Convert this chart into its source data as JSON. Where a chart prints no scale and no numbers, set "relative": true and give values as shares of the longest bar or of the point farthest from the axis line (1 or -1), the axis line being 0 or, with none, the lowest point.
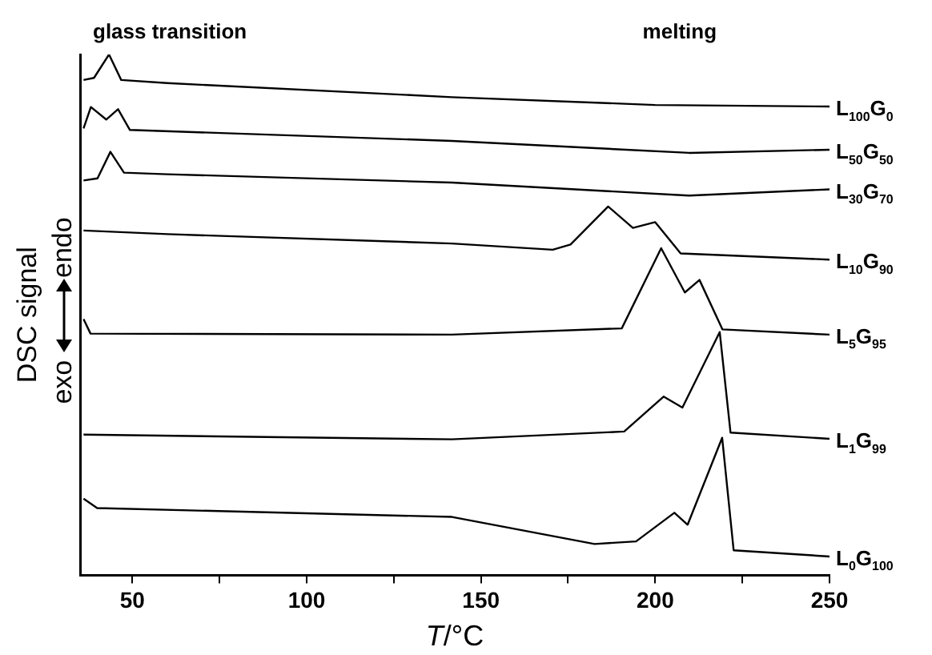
{
  "chart_data": {
    "type": "line",
    "relative": true,
    "xlabel": "T/°C",
    "ylabel": "DSC signal",
    "xlim": [
      35,
      250
    ],
    "xticks": [
      50,
      {
        "value": 75,
        "label": null
      },
      100,
      {
        "value": 125,
        "label": null
      },
      150,
      {
        "value": 175,
        "label": null
      },
      200,
      {
        "value": 225,
        "label": null
      },
      250
    ],
    "tick_labels": "x",
    "grid": false,
    "legend": false,
    "marker": "none",
    "line_style": "solid",
    "annotations": [
      "glass transition",
      "melting",
      "exo",
      "endo"
    ],
    "series": [
      {
        "name": "L$_{100}$G$_{0}$",
        "color": "#000000",
        "x": [
          36,
          39,
          43.3,
          46.8,
          60,
          141.7,
          200,
          250
        ],
        "values": [
          0.951,
          0.955,
          1.0,
          0.951,
          0.945,
          0.918,
          0.903,
          0.9
        ]
      },
      {
        "name": "L$_{50}$G$_{50}$",
        "color": "#000000",
        "x": [
          36,
          38.1,
          42.5,
          45.9,
          49.3,
          141.7,
          209.7,
          250
        ],
        "values": [
          0.858,
          0.899,
          0.875,
          0.895,
          0.855,
          0.834,
          0.811,
          0.817
        ]
      },
      {
        "name": "L$_{30}$G$_{70}$",
        "color": "#000000",
        "x": [
          36,
          40,
          43.7,
          47.6,
          60,
          141.7,
          209.7,
          250
        ],
        "values": [
          0.758,
          0.762,
          0.813,
          0.773,
          0.77,
          0.754,
          0.729,
          0.741
        ]
      },
      {
        "name": "L$_{10}$G$_{90}$",
        "color": "#000000",
        "x": [
          36,
          60,
          141.7,
          170.6,
          175.7,
          186.5,
          193.6,
          200,
          207.3,
          250
        ],
        "values": [
          0.662,
          0.655,
          0.637,
          0.625,
          0.635,
          0.708,
          0.667,
          0.678,
          0.618,
          0.606
        ]
      },
      {
        "name": "L$_{5}$G$_{95}$",
        "color": "#000000",
        "x": [
          36,
          38,
          141.7,
          190.4,
          201.7,
          208.5,
          212.7,
          219.3,
          250
        ],
        "values": [
          0.492,
          0.464,
          0.462,
          0.474,
          0.628,
          0.543,
          0.567,
          0.472,
          0.462
        ]
      },
      {
        "name": "L$_{1}$G$_{99}$",
        "color": "#000000",
        "x": [
          36,
          141.7,
          191.1,
          202.4,
          207.8,
          218.5,
          221.6,
          250
        ],
        "values": [
          0.27,
          0.261,
          0.276,
          0.343,
          0.322,
          0.467,
          0.274,
          0.262
        ]
      },
      {
        "name": "L$_{0}$G$_{100}$",
        "color": "#000000",
        "x": [
          36,
          39.9,
          141.7,
          182.6,
          194.5,
          205.5,
          209.3,
          219.2,
          222.5,
          250
        ],
        "values": [
          0.147,
          0.129,
          0.112,
          0.06,
          0.065,
          0.12,
          0.097,
          0.264,
          0.048,
          0.036
        ]
      }
    ]
  }
}
